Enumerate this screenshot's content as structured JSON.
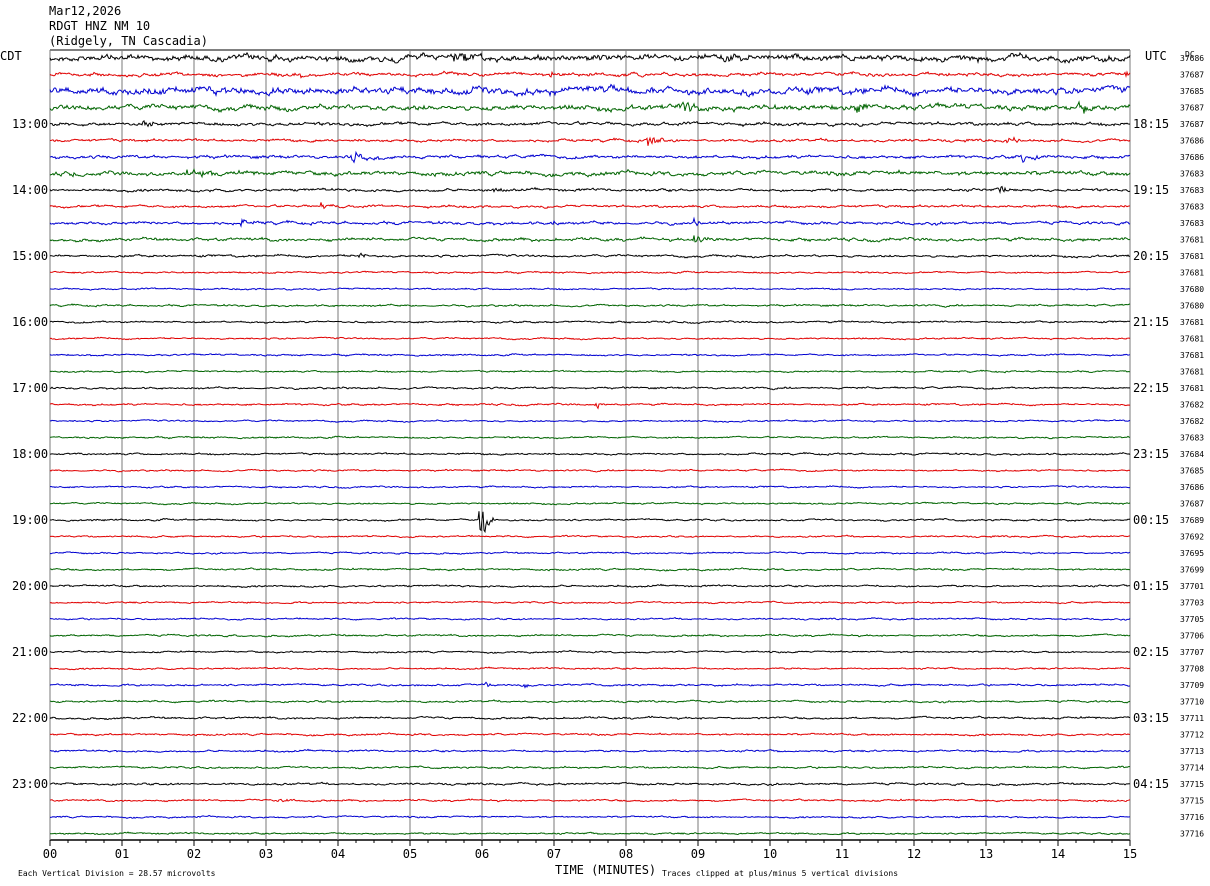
{
  "header": {
    "date": "Mar12,2026",
    "station": "RDGT HNZ NM 10",
    "location": "(Ridgely, TN Cascadia)"
  },
  "footer": {
    "scale_note": "Each Vertical Division =   28.57 microvolts",
    "clip_note": "Traces clipped at plus/minus 5 vertical divisions"
  },
  "chart_data": {
    "type": "line",
    "title": "",
    "xlabel": "TIME (MINUTES)",
    "ylabel_left": "CDT",
    "ylabel_right": "UTC",
    "counts_label": "DC",
    "x_range": [
      0,
      15
    ],
    "x_ticks": [
      "00",
      "01",
      "02",
      "03",
      "04",
      "05",
      "06",
      "07",
      "08",
      "09",
      "10",
      "11",
      "12",
      "13",
      "14",
      "15"
    ],
    "trace_colors": [
      "#000000",
      "#e00000",
      "#0000d0",
      "#006400"
    ],
    "traces_per_hour": 4,
    "left_hour_labels": [
      {
        "row": 4,
        "label": "13:00"
      },
      {
        "row": 8,
        "label": "14:00"
      },
      {
        "row": 12,
        "label": "15:00"
      },
      {
        "row": 16,
        "label": "16:00"
      },
      {
        "row": 20,
        "label": "17:00"
      },
      {
        "row": 24,
        "label": "18:00"
      },
      {
        "row": 28,
        "label": "19:00"
      },
      {
        "row": 32,
        "label": "20:00"
      },
      {
        "row": 36,
        "label": "21:00"
      },
      {
        "row": 40,
        "label": "22:00"
      },
      {
        "row": 44,
        "label": "23:00"
      }
    ],
    "right_hour_labels": [
      {
        "row": 4,
        "label": "18:15"
      },
      {
        "row": 8,
        "label": "19:15"
      },
      {
        "row": 12,
        "label": "20:15"
      },
      {
        "row": 16,
        "label": "21:15"
      },
      {
        "row": 20,
        "label": "22:15"
      },
      {
        "row": 24,
        "label": "23:15"
      },
      {
        "row": 28,
        "label": "00:15"
      },
      {
        "row": 32,
        "label": "01:15"
      },
      {
        "row": 36,
        "label": "02:15"
      },
      {
        "row": 40,
        "label": "03:15"
      },
      {
        "row": 44,
        "label": "04:15"
      }
    ],
    "dc_offsets": [
      "37686",
      "37687",
      "37685",
      "37687",
      "37687",
      "37686",
      "37686",
      "37683",
      "37683",
      "37683",
      "37683",
      "37681",
      "37681",
      "37681",
      "37680",
      "37680",
      "37681",
      "37681",
      "37681",
      "37681",
      "37681",
      "37682",
      "37682",
      "37683",
      "37684",
      "37685",
      "37686",
      "37687",
      "37689",
      "37692",
      "37695",
      "37699",
      "37701",
      "37703",
      "37705",
      "37706",
      "37707",
      "37708",
      "37709",
      "37710",
      "37711",
      "37712",
      "37713",
      "37714",
      "37715",
      "37715",
      "37716",
      "37716"
    ],
    "noise_level": [
      3.0,
      1.6,
      3.4,
      2.6,
      1.6,
      1.3,
      1.5,
      2.0,
      1.3,
      1.2,
      1.4,
      1.5,
      1.1,
      0.8,
      0.8,
      0.9,
      0.9,
      0.8,
      0.8,
      0.8,
      0.9,
      0.9,
      0.8,
      0.8,
      0.9,
      0.8,
      0.8,
      0.8,
      0.9,
      0.8,
      0.8,
      0.9,
      0.9,
      0.8,
      0.8,
      0.9,
      0.8,
      0.8,
      0.9,
      0.9,
      1.0,
      0.9,
      0.9,
      0.9,
      1.0,
      0.9,
      0.8,
      0.8
    ],
    "events": [
      {
        "row": 0,
        "minute": 5.6,
        "amp": 6,
        "dur": 0.6
      },
      {
        "row": 0,
        "minute": 9.35,
        "amp": 5,
        "dur": 0.5
      },
      {
        "row": 1,
        "minute": 3.45,
        "amp": 3,
        "dur": 0.15
      },
      {
        "row": 1,
        "minute": 6.95,
        "amp": 3,
        "dur": 0.2
      },
      {
        "row": 1,
        "minute": 14.95,
        "amp": 4,
        "dur": 0.15
      },
      {
        "row": 3,
        "minute": 8.75,
        "amp": 6,
        "dur": 0.6
      },
      {
        "row": 3,
        "minute": 11.2,
        "amp": 5,
        "dur": 0.5
      },
      {
        "row": 3,
        "minute": 14.3,
        "amp": 5,
        "dur": 0.4
      },
      {
        "row": 4,
        "minute": 1.3,
        "amp": 4,
        "dur": 0.4
      },
      {
        "row": 5,
        "minute": 8.3,
        "amp": 6,
        "dur": 0.4
      },
      {
        "row": 5,
        "minute": 13.3,
        "amp": 4,
        "dur": 0.4
      },
      {
        "row": 6,
        "minute": 4.2,
        "amp": 5,
        "dur": 0.5
      },
      {
        "row": 6,
        "minute": 13.5,
        "amp": 5,
        "dur": 0.5
      },
      {
        "row": 7,
        "minute": 0.3,
        "amp": 4,
        "dur": 0.3
      },
      {
        "row": 7,
        "minute": 1.9,
        "amp": 5,
        "dur": 0.6
      },
      {
        "row": 8,
        "minute": 6.15,
        "amp": 3,
        "dur": 0.3
      },
      {
        "row": 8,
        "minute": 13.2,
        "amp": 4,
        "dur": 0.4
      },
      {
        "row": 9,
        "minute": 3.75,
        "amp": 5,
        "dur": 0.3
      },
      {
        "row": 10,
        "minute": 2.65,
        "amp": 4,
        "dur": 0.3
      },
      {
        "row": 10,
        "minute": 6.95,
        "amp": 4,
        "dur": 0.3
      },
      {
        "row": 10,
        "minute": 8.95,
        "amp": 4,
        "dur": 0.3
      },
      {
        "row": 11,
        "minute": 8.95,
        "amp": 5,
        "dur": 0.3
      },
      {
        "row": 12,
        "minute": 4.3,
        "amp": 4,
        "dur": 0.2
      },
      {
        "row": 21,
        "minute": 7.6,
        "amp": 7,
        "dur": 0.12
      },
      {
        "row": 28,
        "minute": 5.98,
        "amp": 34,
        "dur": 0.18
      },
      {
        "row": 38,
        "minute": 6.05,
        "amp": 5,
        "dur": 0.1
      },
      {
        "row": 38,
        "minute": 6.6,
        "amp": 4,
        "dur": 0.1
      },
      {
        "row": 45,
        "minute": 3.2,
        "amp": 3,
        "dur": 0.2
      }
    ]
  }
}
